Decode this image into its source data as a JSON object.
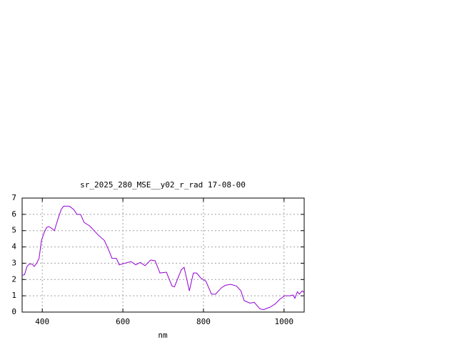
{
  "chart_data": {
    "type": "line",
    "title": "sr_2025_280_MSE__y02_r_rad 17-08-00",
    "x_label": "nm",
    "x": [
      350,
      356,
      362,
      368,
      375,
      380,
      386,
      392,
      398,
      405,
      411,
      416,
      423,
      430,
      440,
      447,
      453,
      467,
      478,
      486,
      495,
      504,
      517,
      525,
      540,
      554,
      565,
      573,
      584,
      591,
      605,
      620,
      632,
      643,
      655,
      669,
      680,
      692,
      708,
      722,
      728,
      745,
      752,
      765,
      775,
      783,
      793,
      806,
      820,
      830,
      845,
      855,
      868,
      882,
      893,
      901,
      916,
      926,
      940,
      949,
      965,
      978,
      990,
      1002,
      1015,
      1022,
      1027,
      1033,
      1038,
      1045,
      1050
    ],
    "series": [
      {
        "name": "sr_2025_280_MSE__y02_r_rad",
        "color": "#9400d3",
        "values": [
          2.25,
          2.3,
          2.8,
          2.95,
          2.95,
          2.8,
          3.0,
          3.3,
          4.4,
          4.9,
          5.2,
          5.25,
          5.15,
          5.0,
          5.8,
          6.3,
          6.5,
          6.5,
          6.3,
          6.0,
          6.0,
          5.5,
          5.3,
          5.1,
          4.7,
          4.4,
          3.8,
          3.3,
          3.3,
          2.9,
          3.0,
          3.1,
          2.9,
          3.05,
          2.85,
          3.2,
          3.15,
          2.4,
          2.45,
          1.6,
          1.55,
          2.6,
          2.75,
          1.3,
          2.4,
          2.4,
          2.1,
          1.9,
          1.1,
          1.1,
          1.5,
          1.65,
          1.7,
          1.6,
          1.3,
          0.7,
          0.55,
          0.6,
          0.2,
          0.15,
          0.3,
          0.5,
          0.8,
          1.0,
          1.0,
          1.05,
          0.85,
          1.25,
          1.1,
          1.3,
          1.2
        ]
      }
    ],
    "xlim": [
      350,
      1050
    ],
    "ylim": [
      0,
      7
    ],
    "xticks": [
      400,
      600,
      800,
      1000
    ],
    "yticks": [
      0,
      1,
      2,
      3,
      4,
      5,
      6,
      7
    ],
    "grid": true
  }
}
